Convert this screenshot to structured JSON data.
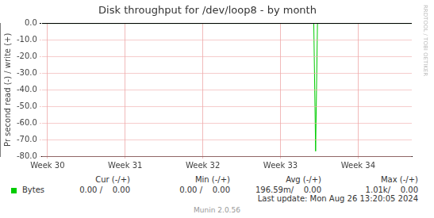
{
  "chart_data": {
    "type": "line",
    "title": "Disk throughput for /dev/loop8 - by month",
    "y_label": "Pr second read (-) / write (+)",
    "categories": [
      null,
      null,
      null,
      "Week 30",
      null,
      null,
      null,
      null,
      null,
      null,
      null,
      null,
      null,
      null,
      null,
      null,
      null,
      null,
      null,
      null,
      null,
      null,
      null,
      null,
      null,
      null,
      null,
      null,
      null,
      null,
      null,
      null,
      null,
      null,
      null,
      null,
      null,
      null,
      null,
      null,
      null,
      null,
      null,
      null,
      null,
      "Week 31",
      null,
      null,
      null,
      null,
      null,
      null,
      null,
      null,
      null,
      null,
      null,
      null,
      null,
      null,
      null,
      null,
      null,
      null,
      null,
      null,
      null,
      null,
      null,
      null,
      null,
      null,
      null,
      null,
      null,
      null,
      null,
      null,
      null,
      null,
      null,
      null,
      null,
      null,
      null,
      null,
      null,
      "Week 32",
      null,
      null,
      null,
      null,
      null,
      null,
      null,
      null,
      null,
      null,
      null,
      null,
      null,
      null,
      null,
      null,
      null,
      null,
      null,
      null,
      null,
      null,
      null,
      null,
      null,
      null,
      null,
      null,
      null,
      null,
      null,
      null,
      null,
      null,
      null,
      null,
      null,
      null,
      null,
      null,
      null,
      "Week 33",
      null,
      null,
      null,
      null,
      null,
      null,
      null,
      null,
      null,
      null,
      null,
      null,
      null,
      null,
      null,
      null,
      null,
      null,
      null,
      null,
      null,
      null,
      null,
      null,
      null,
      null,
      null,
      null,
      null,
      null,
      null,
      null,
      null,
      null,
      null,
      null,
      null,
      null,
      null,
      null,
      null,
      "Week 34",
      null,
      null,
      null,
      null,
      null,
      null,
      null,
      null,
      null,
      null,
      null,
      null,
      null,
      null,
      null,
      null,
      null,
      null,
      null,
      null,
      null,
      null,
      null,
      null,
      null,
      null,
      null,
      null,
      null
    ],
    "series": [
      {
        "name": "Bytes",
        "color": "#00cc00",
        "values": [
          0,
          0,
          0,
          0,
          0,
          0,
          0,
          0,
          0,
          0,
          0,
          0,
          0,
          0,
          0,
          0,
          0,
          0,
          0,
          0,
          0,
          0,
          0,
          0,
          0,
          0,
          0,
          0,
          0,
          0,
          0,
          0,
          0,
          0,
          0,
          0,
          0,
          0,
          0,
          0,
          0,
          0,
          0,
          0,
          0,
          0,
          0,
          0,
          0,
          0,
          0,
          0,
          0,
          0,
          0,
          0,
          0,
          0,
          0,
          0,
          0,
          0,
          0,
          0,
          0,
          0,
          0,
          0,
          0,
          0,
          0,
          0,
          0,
          0,
          0,
          0,
          0,
          0,
          0,
          0,
          0,
          0,
          0,
          0,
          0,
          0,
          0,
          0,
          0,
          0,
          0,
          0,
          0,
          0,
          0,
          0,
          0,
          0,
          0,
          0,
          0,
          0,
          0,
          0,
          0,
          0,
          0,
          0,
          0,
          0,
          0,
          0,
          0,
          0,
          0,
          0,
          0,
          0,
          0,
          0,
          0,
          0,
          0,
          0,
          0,
          0,
          0,
          0,
          0,
          0,
          0,
          0,
          0,
          0,
          0,
          0,
          0,
          0,
          0,
          0,
          0,
          0,
          0,
          0,
          0,
          0,
          0,
          0,
          -77,
          0,
          0,
          0,
          0,
          0,
          0,
          0,
          0,
          0,
          0,
          0,
          0,
          0,
          0,
          0,
          0,
          0,
          0,
          0,
          0,
          0,
          0,
          0,
          0,
          0,
          0,
          0,
          0,
          0,
          0,
          0,
          0,
          0,
          0,
          0,
          0,
          0,
          0,
          0,
          0,
          0,
          0,
          0,
          0,
          0,
          0,
          0,
          0,
          0,
          0,
          0,
          0
        ]
      }
    ],
    "ylim": [
      -80,
      0
    ],
    "yticks": [
      {
        "value": -80,
        "label": "-80.0"
      },
      {
        "value": -70,
        "label": "-70.0"
      },
      {
        "value": -60,
        "label": "-60.0"
      },
      {
        "value": -50,
        "label": "-50.0"
      },
      {
        "value": -40,
        "label": "-40.0"
      },
      {
        "value": -30,
        "label": "-30.0"
      },
      {
        "value": -20,
        "label": "-20.0"
      },
      {
        "value": -10,
        "label": "-10.0"
      },
      {
        "value": 0,
        "label": "0.0"
      }
    ],
    "grid": true,
    "summary": {
      "columns": [
        "Cur (-/+)",
        "Min (-/+)",
        "Avg (-/+)",
        "Max (-/+)"
      ],
      "cells": [
        [
          "0.00 /    0.00",
          "0.00 /    0.00",
          "196.59m/    0.00",
          "1.01k/    0.00"
        ]
      ]
    },
    "last_update": "Last update: Mon Aug 26 13:20:05 2024",
    "credits": "Munin 2.0.56",
    "watermark": "RRDTOOL / TOBI OETIKER"
  }
}
